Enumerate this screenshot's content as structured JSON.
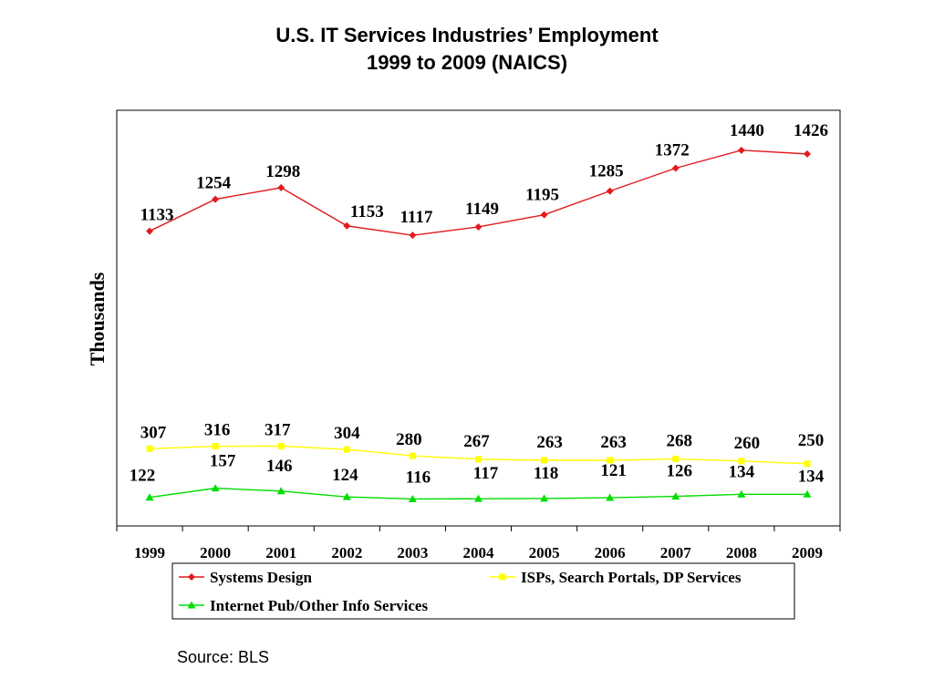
{
  "title_line1": "U.S. IT Services Industries’ Employment",
  "title_line2": "1999 to 2009 (NAICS)",
  "source": "Source: BLS",
  "chart_data": {
    "type": "line",
    "title": "U.S. IT Services Industries’ Employment 1999 to 2009 (NAICS)",
    "ylabel": "Thousands",
    "xlabel": "",
    "categories": [
      "1999",
      "2000",
      "2001",
      "2002",
      "2003",
      "2004",
      "2005",
      "2006",
      "2007",
      "2008",
      "2009"
    ],
    "ylim": [
      0,
      1600
    ],
    "grid": false,
    "legend_position": "bottom",
    "series": [
      {
        "name": "Systems Design",
        "color": "#e31a1c",
        "marker": "diamond",
        "values": [
          1133,
          1254,
          1298,
          1153,
          1117,
          1149,
          1195,
          1285,
          1372,
          1440,
          1426
        ]
      },
      {
        "name": "ISPs, Search Portals, DP Services",
        "color": "#ffff00",
        "marker": "square",
        "values": [
          307,
          316,
          317,
          304,
          280,
          267,
          263,
          263,
          268,
          260,
          250
        ]
      },
      {
        "name": "Internet Pub/Other Info Services",
        "color": "#00dd00",
        "marker": "triangle",
        "values": [
          122,
          157,
          146,
          124,
          116,
          117,
          118,
          121,
          126,
          134,
          134
        ]
      }
    ]
  }
}
